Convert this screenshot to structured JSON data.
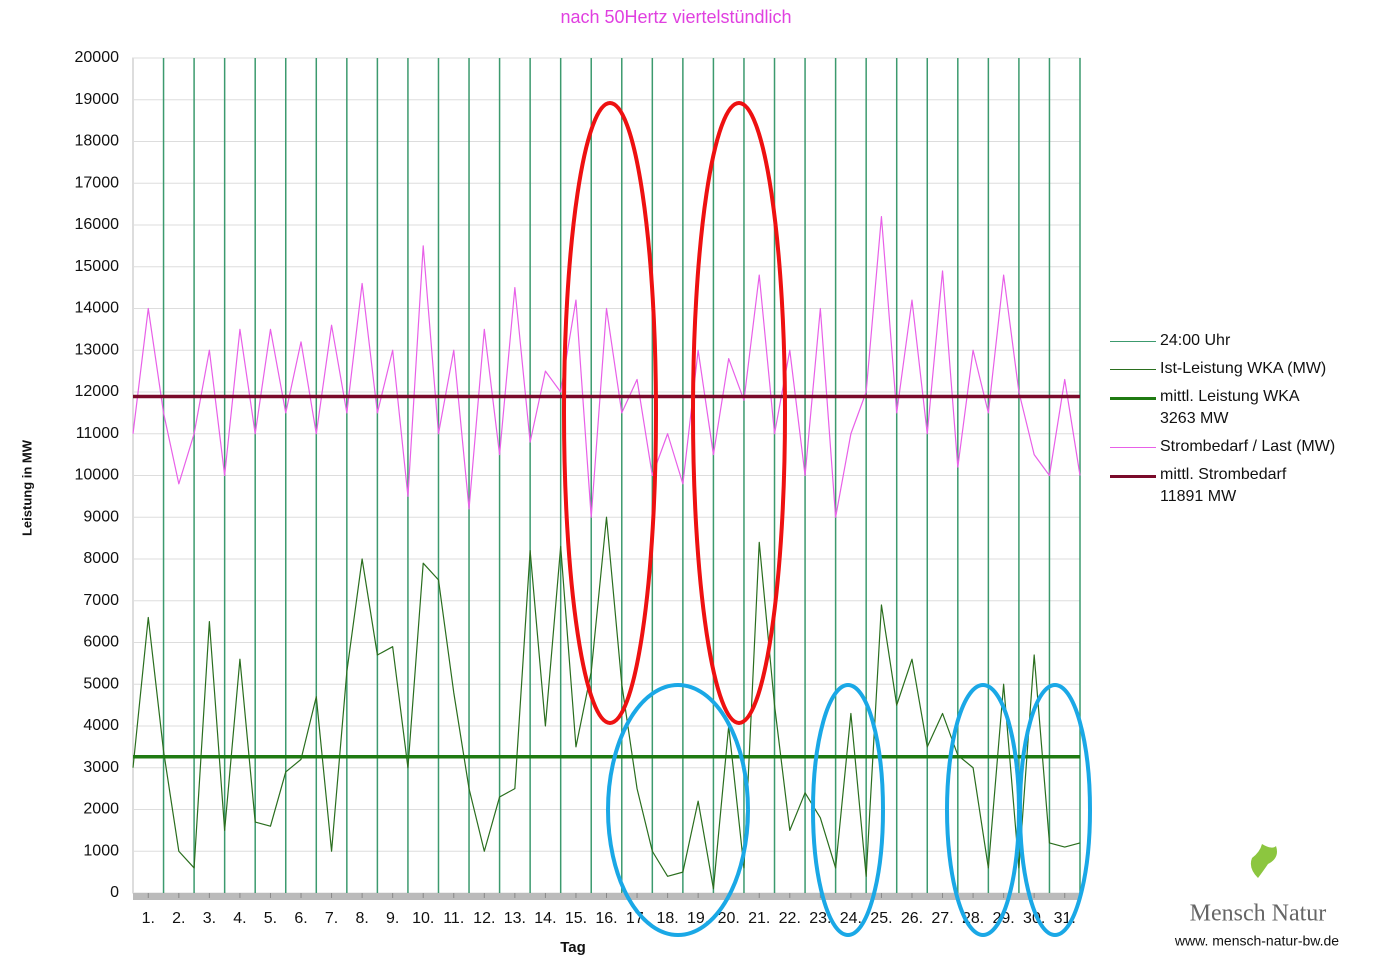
{
  "chart_data": {
    "type": "line",
    "title": "nach 50Hertz viertelstündlich",
    "y_label": "Leistung in MW",
    "x_label": "Tag",
    "xlim": [
      0,
      31
    ],
    "ylim": [
      0,
      20000
    ],
    "yticks": [
      0,
      1000,
      2000,
      3000,
      4000,
      5000,
      6000,
      7000,
      8000,
      9000,
      10000,
      11000,
      12000,
      13000,
      14000,
      15000,
      16000,
      17000,
      18000,
      19000,
      20000
    ],
    "xticks": [
      {
        "value": 0.5,
        "label": "1."
      },
      {
        "value": 1.5,
        "label": "2."
      },
      {
        "value": 2.5,
        "label": "3."
      },
      {
        "value": 3.5,
        "label": "4."
      },
      {
        "value": 4.5,
        "label": "5."
      },
      {
        "value": 5.5,
        "label": "6."
      },
      {
        "value": 6.5,
        "label": "7."
      },
      {
        "value": 7.5,
        "label": "8."
      },
      {
        "value": 8.5,
        "label": "9."
      },
      {
        "value": 9.5,
        "label": "10."
      },
      {
        "value": 10.5,
        "label": "11."
      },
      {
        "value": 11.5,
        "label": "12."
      },
      {
        "value": 12.5,
        "label": "13."
      },
      {
        "value": 13.5,
        "label": "14."
      },
      {
        "value": 14.5,
        "label": "15."
      },
      {
        "value": 15.5,
        "label": "16."
      },
      {
        "value": 16.5,
        "label": "17."
      },
      {
        "value": 17.5,
        "label": "18."
      },
      {
        "value": 18.5,
        "label": "19."
      },
      {
        "value": 19.5,
        "label": "20."
      },
      {
        "value": 20.5,
        "label": "21."
      },
      {
        "value": 21.5,
        "label": "22."
      },
      {
        "value": 22.5,
        "label": "23."
      },
      {
        "value": 23.5,
        "label": "24."
      },
      {
        "value": 24.5,
        "label": "25."
      },
      {
        "value": 25.5,
        "label": "26."
      },
      {
        "value": 26.5,
        "label": "27."
      },
      {
        "value": 27.5,
        "label": "28."
      },
      {
        "value": 28.5,
        "label": "29."
      },
      {
        "value": 29.5,
        "label": "30."
      },
      {
        "value": 30.5,
        "label": "31."
      }
    ],
    "grid": true,
    "x": [
      0,
      0.5,
      1,
      1.5,
      2,
      2.5,
      3,
      3.5,
      4,
      4.5,
      5,
      5.5,
      6,
      6.5,
      7,
      7.5,
      8,
      8.5,
      9,
      9.5,
      10,
      10.5,
      11,
      11.5,
      12,
      12.5,
      13,
      13.5,
      14,
      14.5,
      15,
      15.5,
      16,
      16.5,
      17,
      17.5,
      18,
      18.5,
      19,
      19.5,
      20,
      20.5,
      21,
      21.5,
      22,
      22.5,
      23,
      23.5,
      24,
      24.5,
      25,
      25.5,
      26,
      26.5,
      27,
      27.5,
      28,
      28.5,
      29,
      29.5,
      30,
      30.5,
      31
    ],
    "series": [
      {
        "name": "24:00 Uhr",
        "kind": "vline",
        "color": "#3c9a6e",
        "line_width": 1.5,
        "x": [
          1,
          2,
          3,
          4,
          5,
          6,
          7,
          8,
          9,
          10,
          11,
          12,
          13,
          14,
          15,
          16,
          17,
          18,
          19,
          20,
          21,
          22,
          23,
          24,
          25,
          26,
          27,
          28,
          29,
          30,
          31
        ]
      },
      {
        "name": "Ist-Leistung WKA (MW)",
        "kind": "line",
        "color": "#2a6e1e",
        "line_width": 1.2,
        "values": [
          3000,
          6600,
          3400,
          1000,
          600,
          6500,
          1500,
          5600,
          1700,
          1600,
          2900,
          3200,
          4700,
          1000,
          5300,
          8000,
          5700,
          5900,
          3000,
          7900,
          7500,
          4800,
          2500,
          1000,
          2300,
          2500,
          8200,
          4000,
          8300,
          3500,
          5300,
          9000,
          5000,
          2500,
          1000,
          400,
          500,
          2200,
          100,
          4000,
          600,
          8400,
          4500,
          1500,
          2400,
          1800,
          600,
          4300,
          400,
          6900,
          4500,
          5600,
          3500,
          4300,
          3300,
          3000,
          600,
          5000,
          600,
          5700,
          1200,
          1100,
          1200
        ]
      },
      {
        "name": "mittl. Leistung WKA",
        "kind": "hline",
        "color": "#1f7a12",
        "line_width": 3.5,
        "value": 3263,
        "value_label": "3263 MW"
      },
      {
        "name": "Strombedarf / Last (MW)",
        "kind": "line",
        "color": "#e860e8",
        "line_width": 1.2,
        "values": [
          11000,
          14000,
          11500,
          9800,
          11000,
          13000,
          10000,
          13500,
          11000,
          13500,
          11500,
          13200,
          11000,
          13600,
          11500,
          14600,
          11500,
          13000,
          9500,
          15500,
          11000,
          13000,
          9200,
          13500,
          10500,
          14500,
          10800,
          12500,
          12000,
          14200,
          9000,
          14000,
          11500,
          12300,
          10000,
          11000,
          9800,
          13000,
          10500,
          12800,
          11800,
          14800,
          11000,
          13000,
          10000,
          14000,
          9000,
          11000,
          12000,
          16200,
          11500,
          14200,
          11000,
          14900,
          10200,
          13000,
          11500,
          14800,
          12000,
          10500,
          10000,
          12300,
          10000
        ]
      },
      {
        "name": "mittl. Strombedarf",
        "kind": "hline",
        "color": "#7a0a2a",
        "line_width": 3.5,
        "value": 11891,
        "value_label": "11891 MW"
      }
    ]
  },
  "logo": {
    "name": "Mensch Natur",
    "url": "www. mensch-natur-bw.de"
  }
}
